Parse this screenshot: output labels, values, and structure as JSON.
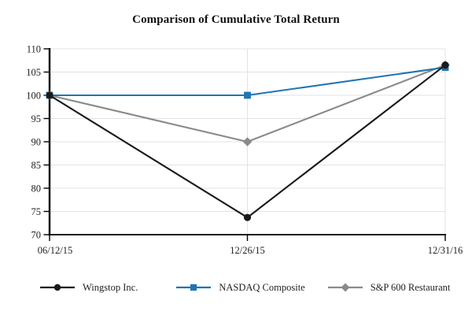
{
  "chart_data": {
    "type": "line",
    "title": "Comparison of Cumulative Total Return",
    "categories": [
      "06/12/15",
      "12/26/15",
      "12/31/16"
    ],
    "series": [
      {
        "name": "Wingstop Inc.",
        "values": [
          100,
          73.7,
          106.5
        ],
        "color": "#1a1a1a",
        "marker": "circle"
      },
      {
        "name": "NASDAQ Composite",
        "values": [
          100,
          100,
          106
        ],
        "color": "#1f74b4",
        "marker": "square"
      },
      {
        "name": "S&P 600 Restaurant",
        "values": [
          100,
          90,
          106.5
        ],
        "color": "#8a8a8a",
        "marker": "diamond"
      }
    ],
    "ylim": [
      70,
      110
    ],
    "yticks": [
      70,
      75,
      80,
      85,
      90,
      95,
      100,
      105,
      110
    ],
    "grid": true,
    "legend_position": "bottom",
    "axis_color": "#000000",
    "gridline_color": "#e3e3e3",
    "text_color": "#1f1f1f"
  }
}
